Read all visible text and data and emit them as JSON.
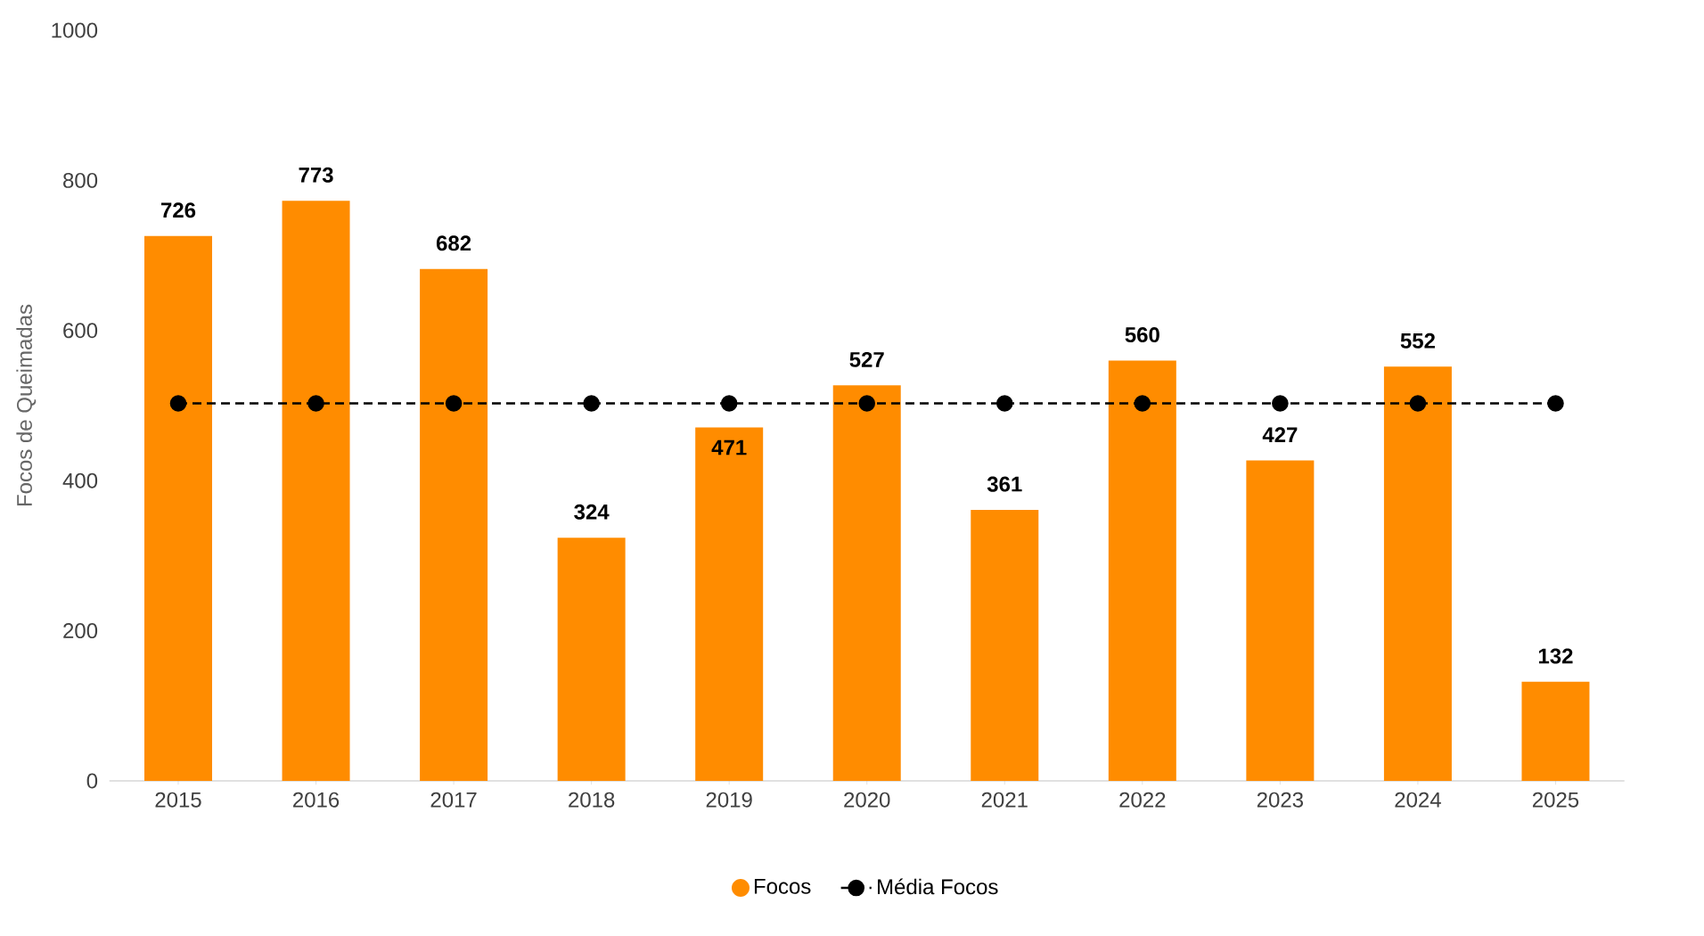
{
  "chart_data": {
    "type": "bar",
    "ylabel": "Focos de Queimadas",
    "categories": [
      "2015",
      "2016",
      "2017",
      "2018",
      "2019",
      "2020",
      "2021",
      "2022",
      "2023",
      "2024",
      "2025"
    ],
    "series": [
      {
        "name": "Focos",
        "color": "#ff8c00",
        "values": [
          726,
          773,
          682,
          324,
          471,
          527,
          361,
          560,
          427,
          552,
          132
        ],
        "value_labels": [
          "726",
          "773",
          "682",
          "324",
          "471",
          "527",
          "361",
          "560",
          "427",
          "552",
          "132"
        ]
      },
      {
        "name": "Média Focos",
        "type": "line",
        "color": "#000000",
        "marker": "circle",
        "line_style": "dashed",
        "values": [
          503,
          503,
          503,
          503,
          503,
          503,
          503,
          503,
          503,
          503,
          503
        ]
      }
    ],
    "ylim": [
      0,
      1000
    ],
    "yticks": [
      0,
      200,
      400,
      600,
      800,
      1000
    ],
    "legend": "bottom"
  }
}
